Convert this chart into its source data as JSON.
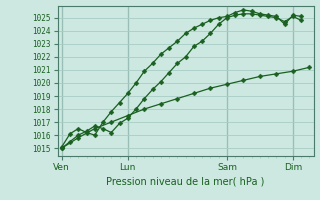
{
  "title": "Pression niveau de la mer( hPa )",
  "bg_color": "#cce8e0",
  "grid_color": "#a8ccc4",
  "line_color": "#1a6020",
  "yticks": [
    1015,
    1016,
    1017,
    1018,
    1019,
    1020,
    1021,
    1022,
    1023,
    1024,
    1025
  ],
  "ylim": [
    1014.4,
    1025.9
  ],
  "xtick_labels": [
    "Ven",
    "Lun",
    "Sam",
    "Dim"
  ],
  "xtick_positions": [
    0,
    48,
    120,
    168
  ],
  "xlim": [
    -3,
    183
  ],
  "line1_x": [
    0,
    6,
    12,
    18,
    24,
    30,
    36,
    42,
    48,
    54,
    60,
    66,
    72,
    78,
    84,
    90,
    96,
    102,
    108,
    114,
    120,
    126,
    132,
    138,
    144,
    150,
    156,
    162,
    168,
    174
  ],
  "line1_y": [
    1015.0,
    1015.5,
    1016.0,
    1016.3,
    1016.7,
    1016.5,
    1016.2,
    1016.9,
    1017.3,
    1018.0,
    1018.8,
    1019.5,
    1020.1,
    1020.8,
    1021.5,
    1022.0,
    1022.8,
    1023.2,
    1023.8,
    1024.5,
    1025.0,
    1025.2,
    1025.3,
    1025.3,
    1025.2,
    1025.1,
    1025.0,
    1024.7,
    1025.1,
    1024.8
  ],
  "line2_x": [
    0,
    6,
    12,
    18,
    24,
    30,
    36,
    42,
    48,
    54,
    60,
    66,
    72,
    78,
    84,
    90,
    96,
    102,
    108,
    114,
    120,
    126,
    132,
    138,
    144,
    150,
    156,
    162,
    168,
    174
  ],
  "line2_y": [
    1015.1,
    1016.1,
    1016.5,
    1016.2,
    1016.0,
    1017.0,
    1017.8,
    1018.5,
    1019.2,
    1020.0,
    1020.9,
    1021.5,
    1022.2,
    1022.7,
    1023.2,
    1023.8,
    1024.2,
    1024.5,
    1024.8,
    1025.0,
    1025.1,
    1025.4,
    1025.6,
    1025.5,
    1025.3,
    1025.2,
    1025.1,
    1024.5,
    1025.2,
    1025.1
  ],
  "line3_x": [
    0,
    12,
    24,
    36,
    48,
    60,
    72,
    84,
    96,
    108,
    120,
    132,
    144,
    156,
    168,
    180
  ],
  "line3_y": [
    1015.0,
    1015.8,
    1016.5,
    1017.0,
    1017.5,
    1018.0,
    1018.4,
    1018.8,
    1019.2,
    1019.6,
    1019.9,
    1020.2,
    1020.5,
    1020.7,
    1020.9,
    1021.2
  ]
}
